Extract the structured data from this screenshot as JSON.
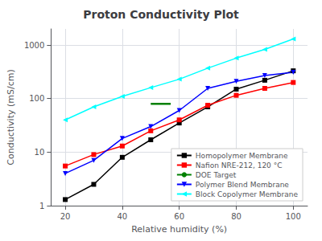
{
  "chart_data": {
    "type": "line",
    "title": "Proton Conductivity Plot",
    "xlabel": "Relative humidity (%)",
    "ylabel": "Conductivity (mS/cm)",
    "xlim": [
      15,
      105
    ],
    "xticks": [
      20,
      40,
      60,
      80,
      100
    ],
    "ylim": [
      1,
      2000
    ],
    "yticks": [
      1,
      10,
      100,
      1000
    ],
    "log": "y",
    "grid": true,
    "legend": "lower right",
    "series": [
      {
        "name": "Homopolymer Membrane",
        "color": "black",
        "marker": "square",
        "x": [
          20,
          30,
          40,
          50,
          60,
          70,
          80,
          90,
          100
        ],
        "values": [
          1.3,
          2.5,
          8,
          17,
          35,
          70,
          150,
          220,
          330
        ]
      },
      {
        "name": "Nafion NRE-212, 120 °C",
        "color": "red",
        "marker": "square",
        "x": [
          20,
          30,
          40,
          50,
          60,
          70,
          80,
          90,
          100
        ],
        "values": [
          5.5,
          9,
          13,
          25,
          40,
          75,
          115,
          155,
          200
        ]
      },
      {
        "name": "DOE Target",
        "color": "green",
        "x": [
          50,
          57
        ],
        "values": [
          80,
          80
        ]
      },
      {
        "name": "Polymer Blend Membrane",
        "color": "blue",
        "marker": "triangle_down",
        "x": [
          20,
          30,
          40,
          50,
          60,
          70,
          80,
          90,
          100
        ],
        "values": [
          4,
          7,
          18,
          30,
          60,
          155,
          210,
          270,
          310
        ]
      },
      {
        "name": "Block Copolymer Membrane",
        "color": "cyan",
        "marker": "triangle_left",
        "x": [
          20,
          30,
          40,
          50,
          60,
          70,
          80,
          90,
          100
        ],
        "values": [
          40,
          70,
          110,
          160,
          230,
          370,
          570,
          830,
          1300
        ]
      }
    ]
  }
}
